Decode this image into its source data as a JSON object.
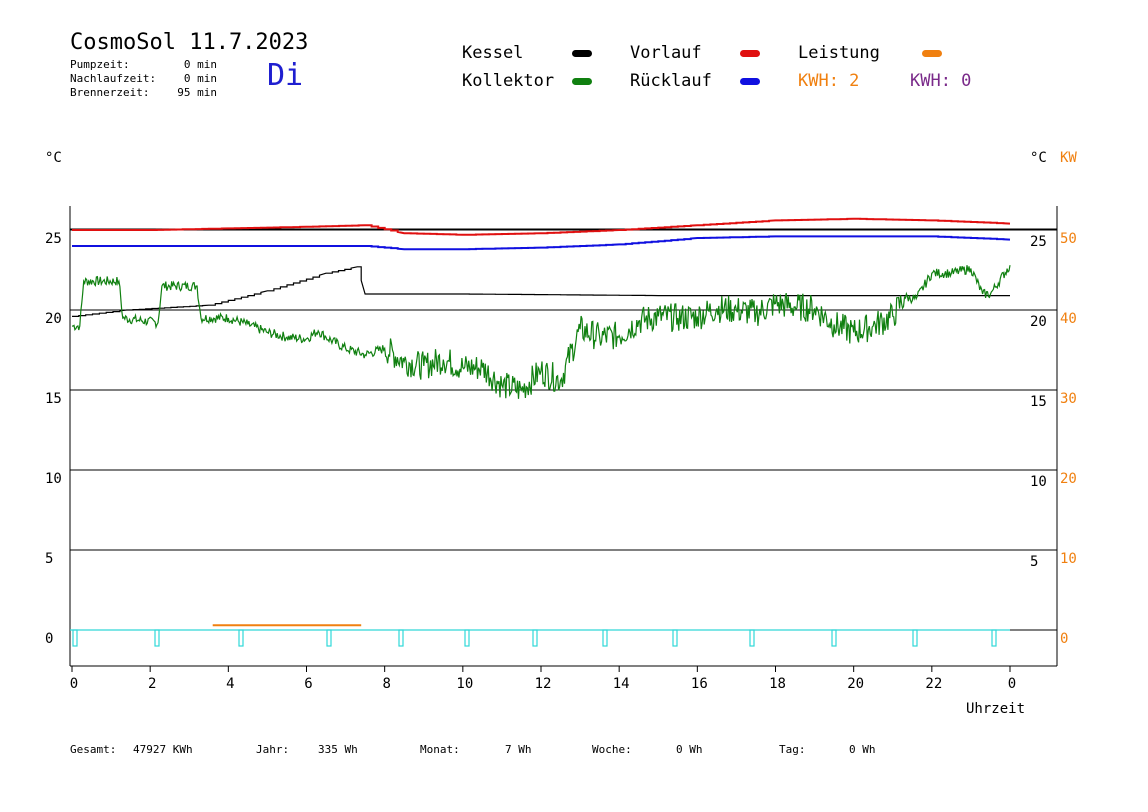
{
  "header": {
    "title": "CosmoSol 11.7.2023",
    "day": "Di",
    "stats": [
      {
        "label": "Pumpzeit:",
        "value": "0 min"
      },
      {
        "label": "Nachlaufzeit:",
        "value": "0 min"
      },
      {
        "label": "Brennerzeit:",
        "value": "95 min"
      }
    ]
  },
  "legend": {
    "kessel": {
      "label": "Kessel",
      "color": "#000000"
    },
    "vorlauf": {
      "label": "Vorlauf",
      "color": "#e01010"
    },
    "leistung": {
      "label": "Leistung",
      "color": "#f08010"
    },
    "kollektor": {
      "label": "Kollektor",
      "color": "#108010"
    },
    "ruecklauf": {
      "label": "Rücklauf",
      "color": "#1010e0"
    },
    "kwh_orange": "KWH: 2",
    "kwh_purple": "KWH: 0"
  },
  "axes": {
    "left_unit": "°C",
    "right_unit": "°C",
    "right_unit2": "KW",
    "x_label": "Uhrzeit"
  },
  "footer": [
    {
      "label": "Gesamt:",
      "value": "47927 KWh"
    },
    {
      "label": "Jahr:",
      "value": "335 Wh"
    },
    {
      "label": "Monat:",
      "value": "7 Wh"
    },
    {
      "label": "Woche:",
      "value": "0 Wh"
    },
    {
      "label": "Tag:",
      "value": "0 Wh"
    }
  ],
  "chart_data": {
    "type": "line",
    "x_ticks": [
      "0",
      "2",
      "4",
      "6",
      "8",
      "10",
      "12",
      "14",
      "16",
      "18",
      "20",
      "22",
      "0"
    ],
    "y_left_ticks": [
      "0",
      "5",
      "10",
      "15",
      "20",
      "25"
    ],
    "y_right_ticks": [
      "5",
      "10",
      "15",
      "20",
      "25"
    ],
    "y_right2_ticks": [
      "0",
      "10",
      "20",
      "30",
      "40",
      "50"
    ],
    "xlim": [
      0,
      24
    ],
    "ylim": [
      -2,
      27
    ],
    "grid": true,
    "series": [
      {
        "name": "Vorlauf",
        "color": "#e01010",
        "x": [
          0,
          2,
          4,
          6,
          7.5,
          8.5,
          10,
          12,
          14,
          16,
          18,
          20,
          22,
          24
        ],
        "values": [
          25,
          25,
          25.1,
          25.2,
          25.3,
          24.8,
          24.7,
          24.8,
          25.0,
          25.3,
          25.6,
          25.7,
          25.6,
          25.4
        ]
      },
      {
        "name": "Rücklauf",
        "color": "#1010e0",
        "x": [
          0,
          2,
          4,
          6,
          7.5,
          8.5,
          10,
          12,
          14,
          16,
          18,
          20,
          22,
          24
        ],
        "values": [
          24,
          24,
          24,
          24,
          24,
          23.8,
          23.8,
          23.9,
          24.1,
          24.5,
          24.6,
          24.6,
          24.6,
          24.4
        ]
      },
      {
        "name": "Kessel",
        "color": "#000000",
        "x": [
          0,
          1.4,
          3.5,
          5,
          6.5,
          7.3,
          7.5,
          10,
          15,
          20,
          24
        ],
        "values": [
          19.6,
          20,
          20.3,
          21.2,
          22.3,
          22.7,
          21,
          21,
          20.9,
          20.9,
          20.9
        ]
      },
      {
        "name": "Kollektor",
        "color": "#108010",
        "x": [
          0,
          0.2,
          0.3,
          1.2,
          1.3,
          2.2,
          2.3,
          3.2,
          3.3,
          4.0,
          4.5,
          5.0,
          5.5,
          6.0,
          6.3,
          6.5,
          7.0,
          7.5,
          8.0,
          8.5,
          9.0,
          9.5,
          10.0,
          10.5,
          11.0,
          11.5,
          12.0,
          12.5,
          13.0,
          13.5,
          14.0,
          14.5,
          15.0,
          15.5,
          16.0,
          16.5,
          17.0,
          17.5,
          18.0,
          18.5,
          19.0,
          19.5,
          20.0,
          20.5,
          21.0,
          21.3,
          21.6,
          22.0,
          22.5,
          23.0,
          23.3,
          23.5,
          24.0
        ],
        "values": [
          19,
          19,
          21.8,
          21.8,
          19.5,
          19.2,
          21.5,
          21.5,
          19.5,
          19.5,
          19.1,
          18.6,
          18.3,
          18.2,
          18.7,
          18.3,
          17.6,
          17.2,
          17.6,
          16.8,
          16.5,
          16.9,
          16.4,
          16.4,
          15.3,
          15.0,
          16.2,
          15.6,
          18.8,
          18.3,
          18.4,
          19.3,
          19.6,
          19.5,
          19.6,
          20.1,
          20.0,
          19.8,
          20.4,
          20.2,
          20.1,
          19.1,
          18.6,
          19.0,
          19.6,
          20.8,
          20.7,
          22.3,
          22.3,
          22.6,
          21.0,
          21.0,
          22.8
        ]
      },
      {
        "name": "Leistung",
        "color": "#f08010",
        "x": [
          3.6,
          7.4
        ],
        "values": [
          0.3,
          0.3
        ]
      }
    ]
  }
}
